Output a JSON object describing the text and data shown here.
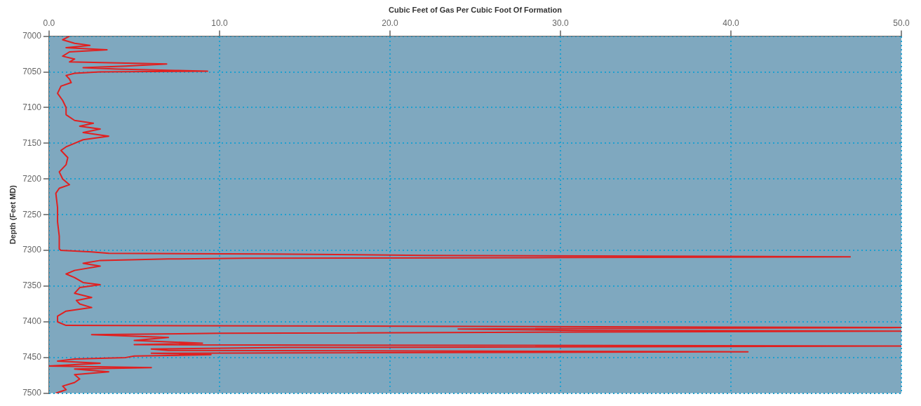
{
  "chart_data": {
    "type": "line",
    "title": "Cubic Feet of Gas Per Cubic Foot Of Formation",
    "ylabel": "Depth (Feet MD)",
    "xlim": [
      0,
      50
    ],
    "xticks": [
      {
        "value": 0,
        "label": "0.0"
      },
      {
        "value": 10,
        "label": "10.0"
      },
      {
        "value": 20,
        "label": "20.0"
      },
      {
        "value": 30,
        "label": "30.0"
      },
      {
        "value": 40,
        "label": "40.0"
      },
      {
        "value": 50,
        "label": "50.0"
      }
    ],
    "ylim": [
      7500,
      7000
    ],
    "yticks": [
      7000,
      7050,
      7100,
      7150,
      7200,
      7250,
      7300,
      7350,
      7400,
      7450,
      7500
    ],
    "grid": true,
    "legend": false,
    "marker": "none",
    "line_style": "solid",
    "series": [
      {
        "color": "#e02020",
        "x": [
          1.2,
          0.8,
          1.5,
          2.4,
          1.0,
          3.4,
          1.2,
          0.8,
          1.5,
          1.2,
          6.9,
          4.5,
          2.0,
          4.0,
          7.4,
          9.3,
          3.0,
          1.5,
          1.0,
          1.2,
          1.3,
          0.7,
          0.5,
          0.8,
          1.0,
          1.0,
          1.5,
          2.6,
          1.8,
          3.0,
          2.0,
          3.5,
          2.0,
          1.5,
          1.0,
          0.7,
          1.1,
          1.0,
          0.6,
          0.8,
          1.2,
          0.6,
          0.4,
          0.5,
          0.5,
          0.6,
          0.6,
          0.7,
          2.5,
          3.5,
          13,
          22,
          35,
          47,
          30,
          11.5,
          7,
          3.0,
          2.0,
          3.0,
          1.5,
          1.0,
          1.5,
          2.0,
          3.0,
          1.8,
          1.5,
          2.5,
          1.6,
          1.8,
          2.5,
          1.0,
          0.5,
          0.5,
          1.0,
          50,
          24,
          31,
          50,
          10,
          2.5,
          7,
          5,
          9,
          5,
          50,
          14,
          6,
          7,
          41,
          6,
          9.5,
          5,
          4.5,
          1.5,
          0.5,
          3,
          0,
          6,
          1.5,
          3.5,
          1.5,
          1.8,
          1.5,
          0.8,
          1.0,
          0.4
        ],
        "values": [
          7000,
          7005,
          7010,
          7013,
          7016,
          7019,
          7022,
          7028,
          7032,
          7036,
          7039,
          7042,
          7044,
          7046,
          7048,
          7049,
          7050,
          7052,
          7055,
          7060,
          7065,
          7070,
          7080,
          7090,
          7100,
          7110,
          7118,
          7122,
          7126,
          7130,
          7135,
          7140,
          7145,
          7150,
          7155,
          7160,
          7170,
          7180,
          7190,
          7200,
          7208,
          7213,
          7220,
          7240,
          7260,
          7280,
          7298,
          7300,
          7302,
          7304,
          7305,
          7307,
          7308,
          7309,
          7310,
          7311,
          7312,
          7314,
          7318,
          7322,
          7328,
          7333,
          7338,
          7345,
          7348,
          7352,
          7360,
          7366,
          7370,
          7375,
          7380,
          7385,
          7392,
          7400,
          7405,
          7408,
          7410,
          7412,
          7413,
          7416,
          7418,
          7422,
          7426,
          7430,
          7432,
          7434,
          7436,
          7438,
          7440,
          7442,
          7444,
          7446,
          7448,
          7450,
          7452,
          7455,
          7458,
          7462,
          7464,
          7466,
          7470,
          7474,
          7480,
          7485,
          7490,
          7495,
          7500
        ]
      }
    ]
  }
}
